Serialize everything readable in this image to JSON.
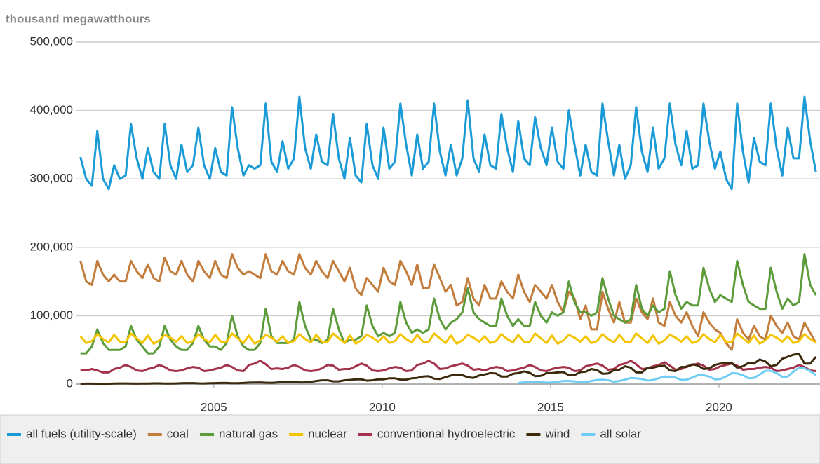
{
  "chart_data": {
    "type": "line",
    "title": "thousand megawatthours",
    "xlim": [
      2000.9,
      2023.0
    ],
    "xticks": [
      2005,
      2010,
      2015,
      2020
    ],
    "ylim": [
      0,
      500000
    ],
    "yticks": [
      0,
      {
        "value": 100000,
        "label": "100,000"
      },
      {
        "value": 200000,
        "label": "200,000"
      },
      {
        "value": 300000,
        "label": "300,000"
      },
      {
        "value": 400000,
        "label": "400,000"
      },
      {
        "value": 500000,
        "label": "500,000"
      }
    ],
    "grid": true,
    "legend": "bottom",
    "x": [
      2001.04,
      2001.21,
      2001.38,
      2001.54,
      2001.71,
      2001.88,
      2002.04,
      2002.21,
      2002.38,
      2002.54,
      2002.71,
      2002.88,
      2003.04,
      2003.21,
      2003.38,
      2003.54,
      2003.71,
      2003.88,
      2004.04,
      2004.21,
      2004.38,
      2004.54,
      2004.71,
      2004.88,
      2005.04,
      2005.21,
      2005.38,
      2005.54,
      2005.71,
      2005.88,
      2006.04,
      2006.21,
      2006.38,
      2006.54,
      2006.71,
      2006.88,
      2007.04,
      2007.21,
      2007.38,
      2007.54,
      2007.71,
      2007.88,
      2008.04,
      2008.21,
      2008.38,
      2008.54,
      2008.71,
      2008.88,
      2009.04,
      2009.21,
      2009.38,
      2009.54,
      2009.71,
      2009.88,
      2010.04,
      2010.21,
      2010.38,
      2010.54,
      2010.71,
      2010.88,
      2011.04,
      2011.21,
      2011.38,
      2011.54,
      2011.71,
      2011.88,
      2012.04,
      2012.21,
      2012.38,
      2012.54,
      2012.71,
      2012.88,
      2013.04,
      2013.21,
      2013.38,
      2013.54,
      2013.71,
      2013.88,
      2014.04,
      2014.21,
      2014.38,
      2014.54,
      2014.71,
      2014.88,
      2015.04,
      2015.21,
      2015.38,
      2015.54,
      2015.71,
      2015.88,
      2016.04,
      2016.21,
      2016.38,
      2016.54,
      2016.71,
      2016.88,
      2017.04,
      2017.21,
      2017.38,
      2017.54,
      2017.71,
      2017.88,
      2018.04,
      2018.21,
      2018.38,
      2018.54,
      2018.71,
      2018.88,
      2019.04,
      2019.21,
      2019.38,
      2019.54,
      2019.71,
      2019.88,
      2020.04,
      2020.21,
      2020.38,
      2020.54,
      2020.71,
      2020.88,
      2021.04,
      2021.21,
      2021.38,
      2021.54,
      2021.71,
      2021.88,
      2022.04,
      2022.21,
      2022.38,
      2022.54,
      2022.71,
      2022.88
    ],
    "series": [
      {
        "name": "all fuels (utility-scale)",
        "color": "#1a9ad6",
        "values": [
          332000,
          300000,
          290000,
          370000,
          300000,
          285000,
          320000,
          300000,
          305000,
          380000,
          330000,
          300000,
          345000,
          310000,
          300000,
          380000,
          320000,
          300000,
          350000,
          310000,
          320000,
          375000,
          320000,
          300000,
          345000,
          310000,
          305000,
          405000,
          345000,
          305000,
          320000,
          315000,
          320000,
          410000,
          325000,
          310000,
          355000,
          315000,
          330000,
          420000,
          345000,
          315000,
          365000,
          325000,
          320000,
          395000,
          330000,
          300000,
          360000,
          305000,
          295000,
          380000,
          320000,
          300000,
          375000,
          315000,
          325000,
          410000,
          350000,
          305000,
          365000,
          315000,
          325000,
          410000,
          340000,
          305000,
          350000,
          305000,
          330000,
          415000,
          330000,
          310000,
          365000,
          320000,
          315000,
          395000,
          345000,
          310000,
          385000,
          330000,
          320000,
          390000,
          345000,
          320000,
          375000,
          325000,
          315000,
          400000,
          350000,
          305000,
          350000,
          310000,
          305000,
          410000,
          355000,
          305000,
          350000,
          300000,
          320000,
          405000,
          340000,
          310000,
          375000,
          315000,
          330000,
          410000,
          350000,
          320000,
          370000,
          315000,
          320000,
          410000,
          355000,
          315000,
          340000,
          300000,
          285000,
          410000,
          340000,
          295000,
          360000,
          325000,
          320000,
          410000,
          345000,
          305000,
          375000,
          330000,
          330000,
          420000,
          355000,
          310000
        ]
      },
      {
        "name": "coal",
        "color": "#c27c3b",
        "values": [
          180000,
          150000,
          145000,
          180000,
          160000,
          150000,
          160000,
          150000,
          150000,
          180000,
          165000,
          155000,
          175000,
          155000,
          150000,
          185000,
          165000,
          160000,
          180000,
          160000,
          150000,
          180000,
          165000,
          155000,
          180000,
          160000,
          155000,
          190000,
          170000,
          160000,
          165000,
          160000,
          155000,
          190000,
          165000,
          160000,
          180000,
          165000,
          160000,
          190000,
          170000,
          160000,
          180000,
          165000,
          155000,
          180000,
          165000,
          150000,
          170000,
          140000,
          130000,
          155000,
          145000,
          135000,
          170000,
          150000,
          145000,
          180000,
          165000,
          145000,
          175000,
          140000,
          140000,
          175000,
          155000,
          135000,
          145000,
          115000,
          120000,
          155000,
          125000,
          115000,
          145000,
          125000,
          125000,
          150000,
          135000,
          125000,
          160000,
          135000,
          120000,
          145000,
          135000,
          125000,
          145000,
          120000,
          105000,
          135000,
          125000,
          95000,
          115000,
          80000,
          80000,
          135000,
          110000,
          90000,
          120000,
          90000,
          90000,
          125000,
          105000,
          95000,
          125000,
          90000,
          85000,
          120000,
          100000,
          90000,
          105000,
          85000,
          70000,
          105000,
          90000,
          80000,
          75000,
          60000,
          50000,
          95000,
          75000,
          65000,
          85000,
          70000,
          65000,
          100000,
          85000,
          75000,
          90000,
          70000,
          65000,
          90000,
          75000,
          60000
        ]
      },
      {
        "name": "natural gas",
        "color": "#5b9b3a",
        "values": [
          45000,
          45000,
          55000,
          80000,
          60000,
          50000,
          50000,
          50000,
          55000,
          85000,
          65000,
          55000,
          45000,
          45000,
          55000,
          85000,
          65000,
          55000,
          50000,
          50000,
          60000,
          85000,
          65000,
          55000,
          55000,
          50000,
          60000,
          100000,
          70000,
          55000,
          50000,
          50000,
          60000,
          110000,
          70000,
          60000,
          60000,
          60000,
          65000,
          120000,
          85000,
          65000,
          65000,
          60000,
          65000,
          110000,
          80000,
          60000,
          65000,
          65000,
          70000,
          115000,
          85000,
          70000,
          75000,
          70000,
          75000,
          120000,
          90000,
          75000,
          80000,
          75000,
          80000,
          125000,
          95000,
          80000,
          90000,
          95000,
          105000,
          140000,
          105000,
          95000,
          90000,
          85000,
          85000,
          125000,
          100000,
          85000,
          95000,
          85000,
          85000,
          120000,
          100000,
          90000,
          105000,
          100000,
          105000,
          150000,
          120000,
          105000,
          105000,
          100000,
          105000,
          155000,
          125000,
          100000,
          95000,
          90000,
          95000,
          145000,
          110000,
          100000,
          115000,
          105000,
          110000,
          165000,
          130000,
          110000,
          120000,
          115000,
          115000,
          170000,
          140000,
          120000,
          130000,
          125000,
          120000,
          180000,
          145000,
          120000,
          115000,
          110000,
          110000,
          170000,
          135000,
          110000,
          125000,
          115000,
          120000,
          190000,
          145000,
          130000
        ]
      },
      {
        "name": "nuclear",
        "color": "#f5c400",
        "values": [
          70000,
          60000,
          63000,
          73000,
          66000,
          61000,
          72000,
          62000,
          62000,
          74000,
          67000,
          60000,
          71000,
          59000,
          64000,
          72000,
          68000,
          62000,
          70000,
          60000,
          63000,
          73000,
          66000,
          61000,
          72000,
          62000,
          62000,
          74000,
          67000,
          60000,
          71000,
          59000,
          64000,
          72000,
          68000,
          62000,
          70000,
          60000,
          63000,
          73000,
          66000,
          61000,
          72000,
          62000,
          62000,
          74000,
          67000,
          60000,
          71000,
          59000,
          64000,
          72000,
          68000,
          62000,
          70000,
          60000,
          63000,
          73000,
          66000,
          61000,
          72000,
          62000,
          62000,
          74000,
          67000,
          60000,
          71000,
          59000,
          64000,
          72000,
          68000,
          62000,
          70000,
          60000,
          63000,
          73000,
          66000,
          61000,
          72000,
          62000,
          62000,
          74000,
          67000,
          60000,
          71000,
          59000,
          64000,
          72000,
          68000,
          62000,
          70000,
          60000,
          63000,
          73000,
          66000,
          61000,
          72000,
          62000,
          62000,
          74000,
          67000,
          60000,
          71000,
          59000,
          64000,
          72000,
          68000,
          62000,
          70000,
          60000,
          63000,
          73000,
          66000,
          61000,
          72000,
          62000,
          62000,
          74000,
          67000,
          60000,
          71000,
          59000,
          64000,
          72000,
          68000,
          62000,
          70000,
          60000,
          63000,
          73000,
          66000,
          61000
        ]
      },
      {
        "name": "conventional hydroelectric",
        "color": "#a3324a",
        "values": [
          20000,
          20000,
          22000,
          20000,
          17000,
          17000,
          22000,
          24000,
          28000,
          25000,
          20000,
          19000,
          22000,
          24000,
          28000,
          25000,
          20000,
          19000,
          20000,
          23000,
          25000,
          24000,
          19000,
          20000,
          22000,
          24000,
          28000,
          25000,
          20000,
          19000,
          28000,
          30000,
          34000,
          29000,
          22000,
          23000,
          22000,
          24000,
          28000,
          25000,
          20000,
          19000,
          20000,
          23000,
          28000,
          27000,
          21000,
          22000,
          22000,
          26000,
          30000,
          27000,
          20000,
          19000,
          20000,
          23000,
          25000,
          24000,
          19000,
          20000,
          28000,
          30000,
          34000,
          30000,
          22000,
          23000,
          26000,
          28000,
          30000,
          27000,
          21000,
          22000,
          20000,
          23000,
          25000,
          24000,
          19000,
          20000,
          22000,
          24000,
          28000,
          25000,
          20000,
          19000,
          22000,
          24000,
          25000,
          24000,
          19000,
          20000,
          26000,
          28000,
          30000,
          27000,
          21000,
          22000,
          28000,
          30000,
          34000,
          29000,
          22000,
          23000,
          26000,
          28000,
          32000,
          27000,
          21000,
          22000,
          26000,
          28000,
          30000,
          27000,
          21000,
          22000,
          26000,
          28000,
          30000,
          27000,
          21000,
          22000,
          22000,
          24000,
          25000,
          24000,
          19000,
          20000,
          22000,
          24000,
          28000,
          25000,
          20000,
          19000
        ]
      },
      {
        "name": "wind",
        "color": "#3b2a0c",
        "values": [
          400,
          600,
          600,
          500,
          400,
          500,
          800,
          900,
          900,
          700,
          600,
          800,
          800,
          1000,
          1000,
          800,
          700,
          900,
          1200,
          1400,
          1400,
          1000,
          900,
          1200,
          1400,
          1600,
          1600,
          1300,
          1200,
          1600,
          2200,
          2400,
          2500,
          2000,
          1800,
          2400,
          2800,
          3200,
          3300,
          2500,
          2600,
          3300,
          4500,
          5500,
          5500,
          4000,
          4000,
          5500,
          6000,
          7000,
          7000,
          5000,
          5500,
          7000,
          7000,
          8500,
          8500,
          6500,
          6500,
          8500,
          9000,
          11000,
          11500,
          8000,
          7500,
          10000,
          12500,
          13500,
          13000,
          10000,
          9000,
          12500,
          14000,
          16000,
          15500,
          11000,
          11000,
          15000,
          16000,
          18500,
          16500,
          11500,
          12000,
          16000,
          16000,
          17000,
          17500,
          13000,
          13000,
          17500,
          18000,
          22000,
          20500,
          15000,
          15500,
          20500,
          21000,
          26000,
          24000,
          17000,
          17000,
          24000,
          24000,
          26000,
          27000,
          20000,
          19000,
          25000,
          25000,
          29000,
          27000,
          22000,
          23000,
          28000,
          30000,
          31000,
          31000,
          24000,
          26000,
          31000,
          30000,
          36000,
          33000,
          26000,
          28000,
          37000,
          40000,
          43000,
          44000,
          30000,
          30000,
          40000
        ]
      },
      {
        "name": "all solar",
        "color": "#70cdf4",
        "values": [
          null,
          null,
          null,
          null,
          null,
          null,
          null,
          null,
          null,
          null,
          null,
          null,
          null,
          null,
          null,
          null,
          null,
          null,
          null,
          null,
          null,
          null,
          null,
          null,
          null,
          null,
          null,
          null,
          null,
          null,
          null,
          null,
          null,
          null,
          null,
          null,
          null,
          null,
          null,
          null,
          null,
          null,
          null,
          null,
          null,
          null,
          null,
          null,
          null,
          null,
          null,
          null,
          null,
          null,
          null,
          null,
          null,
          null,
          null,
          null,
          null,
          null,
          null,
          null,
          null,
          null,
          null,
          null,
          null,
          null,
          null,
          null,
          null,
          null,
          null,
          null,
          null,
          null,
          1500,
          2500,
          3500,
          3500,
          3000,
          2000,
          2500,
          3500,
          4500,
          4500,
          4000,
          2500,
          3000,
          4500,
          6000,
          6500,
          5500,
          3500,
          4500,
          6500,
          9000,
          8500,
          7500,
          5000,
          6000,
          8500,
          11000,
          10500,
          9500,
          6000,
          6500,
          9500,
          13000,
          13000,
          11000,
          7000,
          7500,
          11000,
          16000,
          15500,
          13000,
          8500,
          9000,
          14000,
          19500,
          19500,
          16000,
          10500,
          11000,
          18000,
          24000,
          23000,
          19000,
          13000
        ]
      }
    ]
  }
}
